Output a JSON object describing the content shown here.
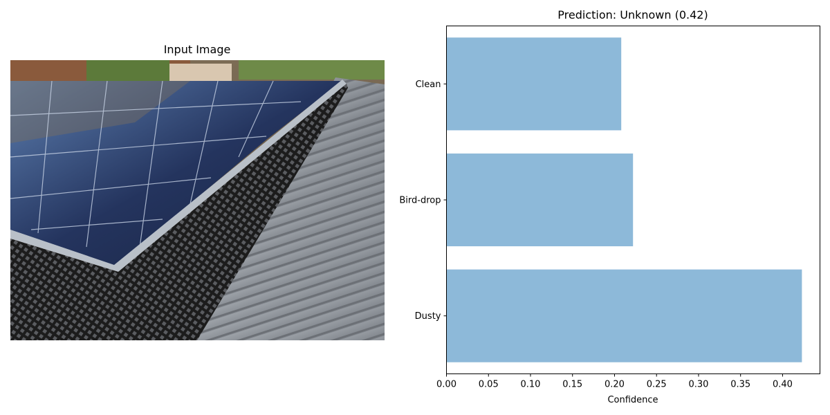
{
  "left_panel": {
    "title": "Input Image"
  },
  "colors": {
    "bar": "#8db9d9",
    "axis": "#000000"
  },
  "chart_data": {
    "type": "bar",
    "orientation": "horizontal",
    "title": "Prediction: Unknown (0.42)",
    "categories": [
      "Clean",
      "Bird-drop",
      "Dusty"
    ],
    "values": [
      0.208,
      0.222,
      0.423
    ],
    "xlabel": "Confidence",
    "ylabel": "",
    "xlim": [
      0,
      0.4445
    ],
    "xticks": [
      "0.00",
      "0.05",
      "0.10",
      "0.15",
      "0.20",
      "0.25",
      "0.30",
      "0.35",
      "0.40"
    ],
    "grid": false,
    "legend": null
  }
}
